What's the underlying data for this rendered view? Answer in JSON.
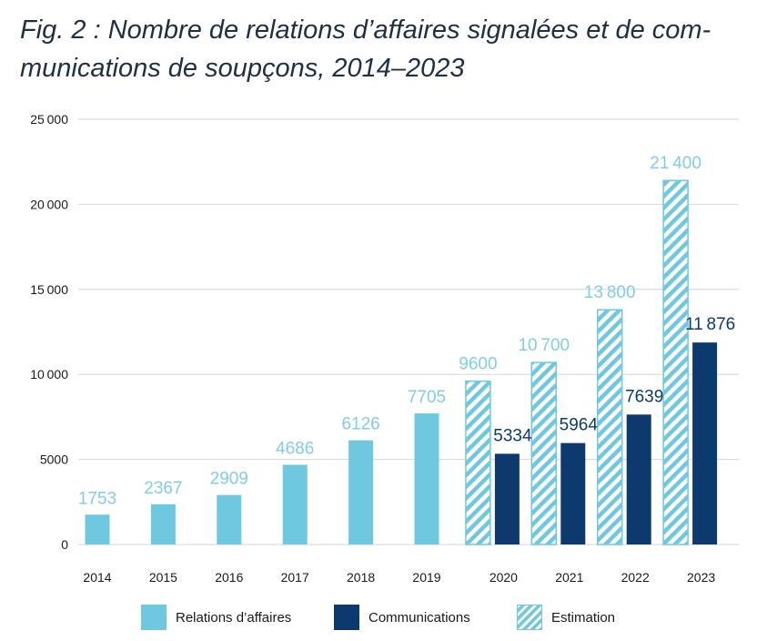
{
  "title_line1": "Fig. 2 : Nombre de relations d’affaires signalées et de com-",
  "title_line2": "munications de soupçons, 2014–2023",
  "colors": {
    "relations": "#6ec8e0",
    "communications": "#0d3a6e",
    "estimation_stripe": "#6ec8e0",
    "relations_label": "#7fcfe6",
    "communications_label": "#0d3a6e",
    "grid": "#d6d6d6",
    "axis_text": "#1a1a1a"
  },
  "legend": {
    "relations": "Relations d’affaires",
    "communications": "Communications",
    "estimation": "Estimation"
  },
  "chart_data": {
    "type": "bar",
    "categories": [
      "2014",
      "2015",
      "2016",
      "2017",
      "2018",
      "2019",
      "2020",
      "2021",
      "2022",
      "2023"
    ],
    "ylim": [
      0,
      25000
    ],
    "yticks": [
      0,
      5000,
      10000,
      15000,
      20000,
      25000
    ],
    "ytick_labels": [
      "0",
      "5000",
      "10 000",
      "15 000",
      "20 000",
      "25 000"
    ],
    "grid": true,
    "legend_position": "bottom",
    "series": [
      {
        "name": "Relations d’affaires",
        "values": [
          1753,
          2367,
          2909,
          4686,
          6126,
          7705,
          null,
          null,
          null,
          null
        ],
        "labels": [
          "1753",
          "2367",
          "2909",
          "4686",
          "6126",
          "7705",
          "",
          "",
          "",
          ""
        ]
      },
      {
        "name": "Estimation",
        "values": [
          null,
          null,
          null,
          null,
          null,
          null,
          9600,
          10700,
          13800,
          21400
        ],
        "labels": [
          "",
          "",
          "",
          "",
          "",
          "",
          "9600",
          "10 700",
          "13 800",
          "21 400"
        ]
      },
      {
        "name": "Communications",
        "values": [
          null,
          null,
          null,
          null,
          null,
          null,
          5334,
          5964,
          7639,
          11876
        ],
        "labels": [
          "",
          "",
          "",
          "",
          "",
          "",
          "5334",
          "5964",
          "7639",
          "11 876"
        ]
      }
    ]
  }
}
